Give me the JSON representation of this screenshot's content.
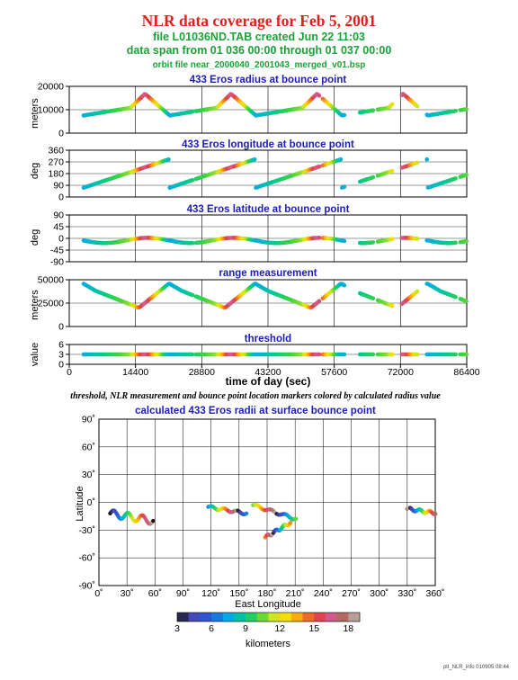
{
  "header": {
    "title": "NLR data coverage for Feb 5, 2001",
    "file_line": "file L01036ND.TAB created Jun 22 11:03",
    "span_line": "data span from 01 036 00:00 through 01 037 00:00",
    "orbit_line": "orbit file near_2000040_2001043_merged_v01.bsp"
  },
  "caption": "threshold, NLR measurement and bounce point location markers colored by calculated radius value",
  "footer_tag": "plt_NLR_info 010905 08:44",
  "colors": {
    "title_red": "#e0201a",
    "green_text": "#1aa336",
    "panel_title_blue": "#1c1cc0"
  },
  "chart_data": [
    {
      "type": "scatter",
      "title": "433 Eros radius at bounce point",
      "ylabel": "meters",
      "ylim": [
        0,
        20000
      ],
      "yticks": [
        "20000",
        "10000",
        "0"
      ],
      "xlim": [
        0,
        86400
      ],
      "grid": true
    },
    {
      "type": "scatter",
      "title": "433 Eros longitude at bounce point",
      "ylabel": "deg",
      "ylim": [
        0,
        360
      ],
      "yticks": [
        "360",
        "270",
        "180",
        "90",
        "0"
      ],
      "xlim": [
        0,
        86400
      ],
      "grid": true
    },
    {
      "type": "scatter",
      "title": "433 Eros latitude at bounce point",
      "ylabel": "deg",
      "ylim": [
        -90,
        90
      ],
      "yticks": [
        "90",
        "45",
        "0",
        "-45",
        "-90"
      ],
      "xlim": [
        0,
        86400
      ],
      "grid": true
    },
    {
      "type": "scatter",
      "title": "range measurement",
      "ylabel": "meters",
      "ylim": [
        0,
        50000
      ],
      "yticks": [
        "50000",
        "25000",
        "0"
      ],
      "xlim": [
        0,
        86400
      ],
      "grid": true
    },
    {
      "type": "scatter",
      "title": "threshold",
      "ylabel": "value",
      "ylim": [
        0,
        6
      ],
      "yticks": [
        "6",
        "3",
        "0"
      ],
      "xlabel": "time of day (sec)",
      "xlim": [
        0,
        86400
      ],
      "xticks": [
        "0",
        "14400",
        "28800",
        "43200",
        "57600",
        "72000",
        "86400"
      ],
      "grid": true
    },
    {
      "type": "scatter",
      "title": "calculated 433 Eros radii at surface bounce point",
      "xlabel": "East Longitude",
      "ylabel": "Latitude",
      "xlim": [
        0,
        360
      ],
      "ylim": [
        -90,
        90
      ],
      "xticks": [
        "0˚",
        "30˚",
        "60˚",
        "90˚",
        "120˚",
        "150˚",
        "180˚",
        "210˚",
        "240˚",
        "270˚",
        "300˚",
        "330˚",
        "360˚"
      ],
      "yticks": [
        "90˚",
        "60˚",
        "30˚",
        "0˚",
        "-30˚",
        "-60˚",
        "-90˚"
      ],
      "grid": true,
      "colorbar": {
        "label": "kilometers",
        "ticks": [
          "3",
          "6",
          "9",
          "12",
          "15",
          "18"
        ],
        "range": [
          3,
          19
        ]
      }
    }
  ],
  "trace_data": {
    "time_segments": [
      [
        3000,
        27000
      ],
      [
        27500,
        54500
      ],
      [
        55000,
        59800
      ],
      [
        63000,
        66200
      ],
      [
        67000,
        70200
      ],
      [
        72200,
        75800
      ],
      [
        77500,
        84000
      ],
      [
        84800,
        86400
      ]
    ],
    "track_segments": [
      {
        "lon": [
          12,
          58
        ],
        "lat": [
          -12,
          -20
        ]
      },
      {
        "lon": [
          117,
          158
        ],
        "lat": [
          -5,
          -12
        ]
      },
      {
        "lon": [
          165,
          211
        ],
        "lat": [
          -3,
          -18
        ]
      },
      {
        "lon": [
          178,
          205
        ],
        "lat": [
          -38,
          -22
        ]
      },
      {
        "lon": [
          330,
          362
        ],
        "lat": [
          -7,
          -12
        ]
      }
    ]
  }
}
